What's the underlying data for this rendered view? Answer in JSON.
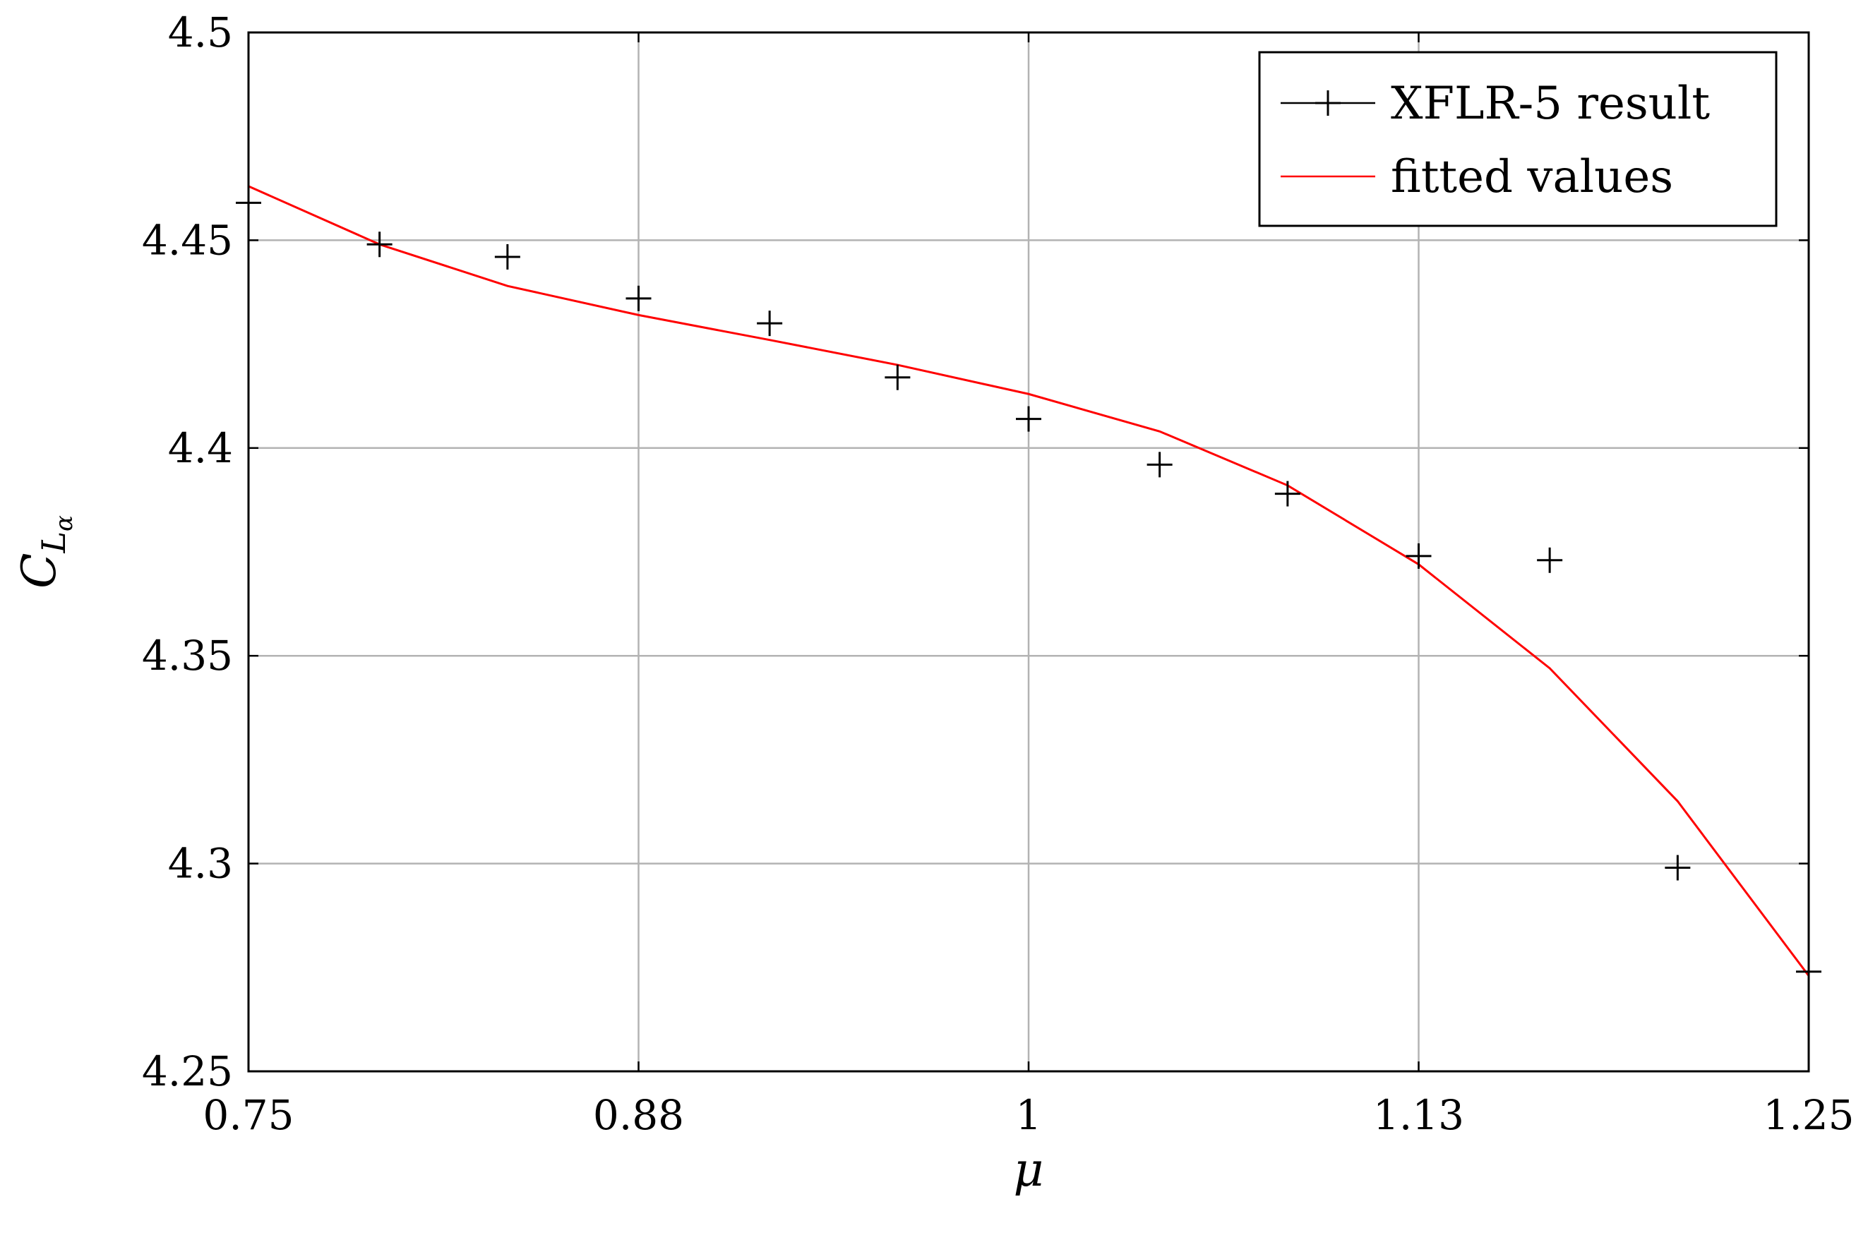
{
  "chart_data": {
    "type": "line",
    "xlabel": "μ",
    "ylabel": {
      "main": "C",
      "sub": "L",
      "subsub": "α"
    },
    "xlim": [
      0.75,
      1.25
    ],
    "ylim": [
      4.25,
      4.5
    ],
    "x_ticks": [
      {
        "value": 0.75,
        "label": "0.75"
      },
      {
        "value": 0.875,
        "label": "0.88"
      },
      {
        "value": 1.0,
        "label": "1"
      },
      {
        "value": 1.125,
        "label": "1.13"
      },
      {
        "value": 1.25,
        "label": "1.25"
      }
    ],
    "y_ticks": [
      {
        "value": 4.25,
        "label": "4.25"
      },
      {
        "value": 4.3,
        "label": "4.3"
      },
      {
        "value": 4.35,
        "label": "4.35"
      },
      {
        "value": 4.4,
        "label": "4.4"
      },
      {
        "value": 4.45,
        "label": "4.45"
      },
      {
        "value": 4.5,
        "label": "4.5"
      }
    ],
    "grid": true,
    "legend_position": "top-right",
    "series": [
      {
        "name": "XFLR-5 result",
        "style": "markers",
        "marker": "plus",
        "color": "#000000",
        "x": [
          0.75,
          0.792,
          0.833,
          0.875,
          0.917,
          0.958,
          1.0,
          1.042,
          1.083,
          1.125,
          1.167,
          1.208,
          1.25
        ],
        "y": [
          4.459,
          4.449,
          4.446,
          4.436,
          4.43,
          4.417,
          4.407,
          4.396,
          4.389,
          4.374,
          4.373,
          4.299,
          4.274
        ]
      },
      {
        "name": "fitted values",
        "style": "line",
        "color": "#ff0000",
        "x": [
          0.75,
          0.792,
          0.833,
          0.875,
          0.917,
          0.958,
          1.0,
          1.042,
          1.083,
          1.125,
          1.167,
          1.208,
          1.25
        ],
        "y": [
          4.463,
          4.449,
          4.439,
          4.432,
          4.426,
          4.42,
          4.413,
          4.404,
          4.391,
          4.372,
          4.347,
          4.315,
          4.273
        ]
      }
    ]
  }
}
